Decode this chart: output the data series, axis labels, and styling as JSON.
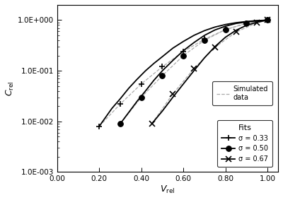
{
  "xlabel": "$V_\\mathrm{rel}$",
  "ylabel": "$C_\\mathrm{rel}$",
  "xlim": [
    0.0,
    1.05
  ],
  "ylim_log": [
    0.001,
    2.0
  ],
  "xticks": [
    0.0,
    0.2,
    0.4,
    0.6,
    0.8,
    1.0
  ],
  "background_color": "#ffffff",
  "series": [
    {
      "label": "σ = 0.33",
      "sigma": 0.33,
      "marker": "+",
      "sim_points_x": [
        0.2,
        0.3,
        0.4,
        0.5,
        0.6,
        0.7,
        0.8,
        0.9,
        1.0
      ],
      "sim_points_y": [
        0.008,
        0.022,
        0.055,
        0.12,
        0.24,
        0.42,
        0.65,
        0.86,
        1.0
      ],
      "fit_x": [
        0.2,
        0.23,
        0.26,
        0.3,
        0.34,
        0.38,
        0.42,
        0.46,
        0.5,
        0.55,
        0.6,
        0.65,
        0.7,
        0.75,
        0.8,
        0.85,
        0.9,
        0.95,
        1.0
      ],
      "fit_y": [
        0.008,
        0.012,
        0.018,
        0.028,
        0.045,
        0.068,
        0.1,
        0.14,
        0.19,
        0.28,
        0.38,
        0.5,
        0.62,
        0.73,
        0.82,
        0.89,
        0.94,
        0.98,
        1.0
      ]
    },
    {
      "label": "σ = 0.50",
      "sigma": 0.5,
      "marker": "o",
      "sim_points_x": [
        0.3,
        0.4,
        0.5,
        0.6,
        0.7,
        0.8,
        0.9,
        1.0
      ],
      "sim_points_y": [
        0.009,
        0.03,
        0.08,
        0.2,
        0.4,
        0.65,
        0.87,
        1.0
      ],
      "fit_x": [
        0.3,
        0.34,
        0.38,
        0.42,
        0.46,
        0.5,
        0.55,
        0.6,
        0.65,
        0.7,
        0.75,
        0.8,
        0.85,
        0.9,
        0.95,
        1.0
      ],
      "fit_y": [
        0.009,
        0.015,
        0.025,
        0.04,
        0.065,
        0.1,
        0.16,
        0.25,
        0.36,
        0.5,
        0.64,
        0.76,
        0.86,
        0.92,
        0.97,
        1.0
      ]
    },
    {
      "label": "σ = 0.67",
      "sigma": 0.67,
      "marker": "x",
      "sim_points_x": [
        0.45,
        0.55,
        0.65,
        0.75,
        0.85,
        0.95,
        1.0
      ],
      "sim_points_y": [
        0.009,
        0.035,
        0.11,
        0.29,
        0.58,
        0.89,
        1.0
      ],
      "fit_x": [
        0.45,
        0.5,
        0.55,
        0.6,
        0.65,
        0.7,
        0.75,
        0.8,
        0.85,
        0.9,
        0.95,
        1.0
      ],
      "fit_y": [
        0.009,
        0.016,
        0.03,
        0.055,
        0.1,
        0.18,
        0.3,
        0.46,
        0.63,
        0.79,
        0.91,
        1.0
      ]
    }
  ],
  "sim_color": "#aaaaaa",
  "fit_color": "#000000"
}
